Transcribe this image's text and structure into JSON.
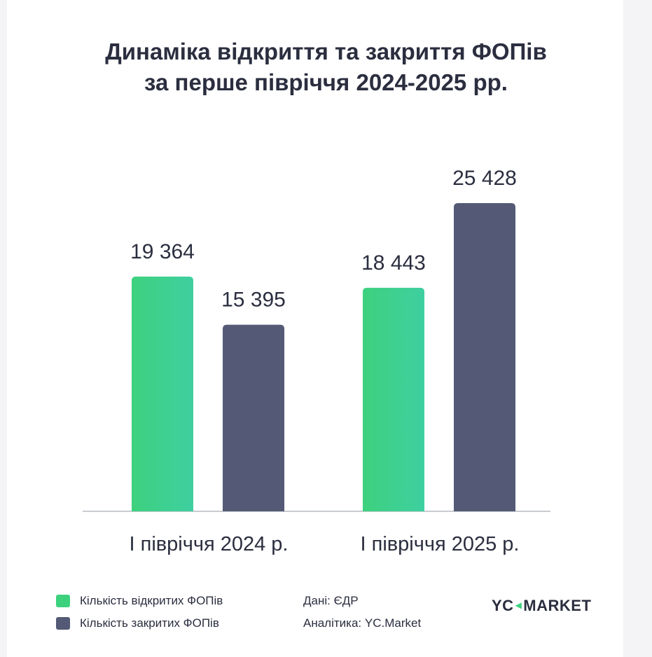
{
  "title_lines": [
    "Динаміка відкриття та закриття ФОПів",
    "за перше півріччя 2024-2025 рр."
  ],
  "chart_data": {
    "type": "bar",
    "title": "Динаміка відкриття та закриття ФОПів за перше півріччя 2024-2025 рр.",
    "categories": [
      "І півріччя 2024 р.",
      "І півріччя 2025 р."
    ],
    "series": [
      {
        "name": "Кількість відкритих ФОПів",
        "values": [
          19364,
          18443
        ],
        "labels": [
          "19 364",
          "18 443"
        ],
        "color": "#3dd17e"
      },
      {
        "name": "Кількість закритих ФОПів",
        "values": [
          15395,
          25428
        ],
        "labels": [
          "15 395",
          "25 428"
        ],
        "color": "#545a75"
      }
    ],
    "ylim": [
      0,
      30000
    ],
    "grid": false,
    "legend_position": "bottom-left"
  },
  "footer": {
    "source": "Дані: ЄДР",
    "analytics": "Аналітика: YC.Market",
    "logo_left": "YC",
    "logo_right": "MARKET"
  },
  "colors": {
    "open_gradient_start": "#3dd17e",
    "open_gradient_end": "#3ecfa0",
    "closed": "#545a75",
    "text": "#2b2e3f",
    "axis": "#c8cbd0"
  }
}
